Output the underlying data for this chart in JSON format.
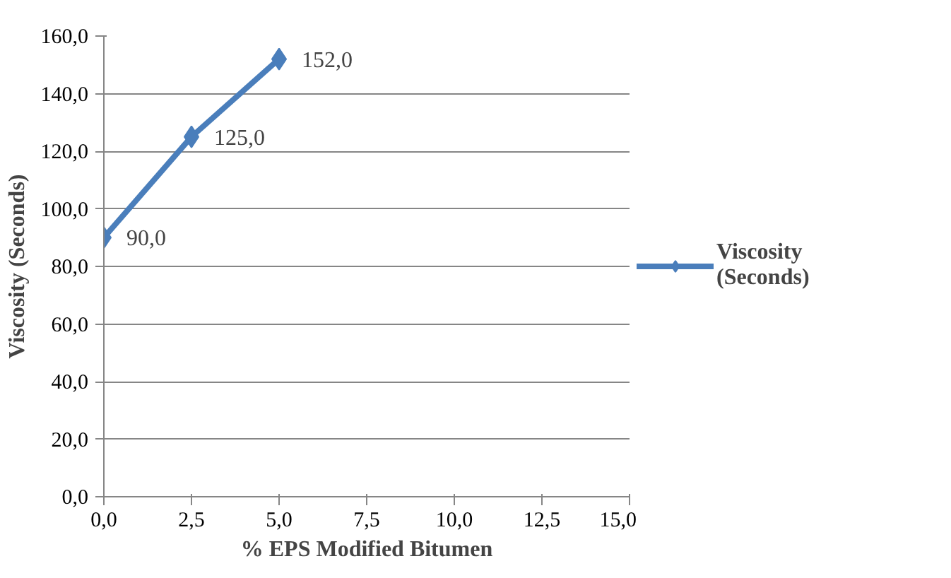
{
  "chart_data": {
    "type": "line",
    "xlabel": "% EPS Modified Bitumen",
    "ylabel": "Viscosity (Seconds)",
    "x": [
      0,
      2.5,
      5
    ],
    "series": [
      {
        "name": "Viscosity (Seconds)",
        "color": "#4a7ebb",
        "values": [
          90,
          125,
          152
        ],
        "value_labels": [
          "90,0",
          "125,0",
          "152,0"
        ]
      }
    ],
    "xlim": [
      0,
      15
    ],
    "xticks": [
      {
        "value": 0,
        "label": "0,0"
      },
      {
        "value": 2.5,
        "label": "2,5"
      },
      {
        "value": 5,
        "label": "5,0"
      },
      {
        "value": 7.5,
        "label": "7,5"
      },
      {
        "value": 10,
        "label": "10,0"
      },
      {
        "value": 12.5,
        "label": "12,5"
      },
      {
        "value": 15,
        "label": "15,0"
      }
    ],
    "ylim": [
      0,
      160
    ],
    "yticks": [
      {
        "value": 0,
        "label": "0,0"
      },
      {
        "value": 20,
        "label": "20,0"
      },
      {
        "value": 40,
        "label": "40,0"
      },
      {
        "value": 60,
        "label": "60,0"
      },
      {
        "value": 80,
        "label": "80,0"
      },
      {
        "value": 100,
        "label": "100,0"
      },
      {
        "value": 120,
        "label": "120,0"
      },
      {
        "value": 140,
        "label": "140,0"
      },
      {
        "value": 160,
        "label": "160,0"
      }
    ],
    "grid": "y",
    "legend": "right",
    "marker": "diamond",
    "line_style": "solid"
  }
}
